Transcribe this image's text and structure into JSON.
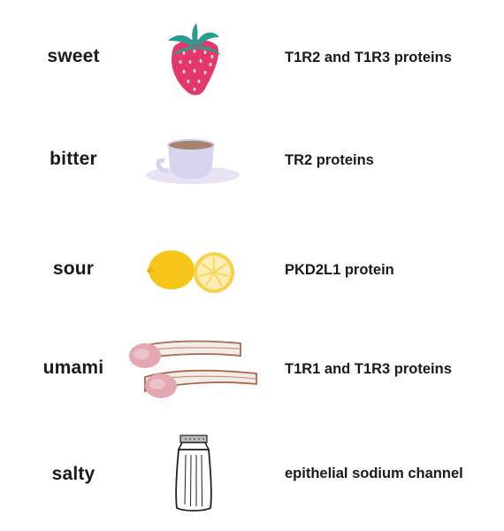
{
  "rows": [
    {
      "taste": "sweet",
      "icon": "strawberry-icon",
      "receptor": "T1R2 and T1R3 proteins"
    },
    {
      "taste": "bitter",
      "icon": "coffee-cup-icon",
      "receptor": "TR2 proteins"
    },
    {
      "taste": "sour",
      "icon": "lemon-icon",
      "receptor": "PKD2L1 protein"
    },
    {
      "taste": "umami",
      "icon": "bacon-icon",
      "receptor": "T1R1 and T1R3 proteins"
    },
    {
      "taste": "salty",
      "icon": "salt-shaker-icon",
      "receptor": "epithelial sodium channel"
    }
  ],
  "colors": {
    "text": "#1a1a1a",
    "strawberry": "#e4386a",
    "leaf": "#2a9d8f",
    "cup": "#d8d3ee",
    "coffee": "#a9826a",
    "lemon": "#f5c518",
    "bacon_meat": "#e3a8b4",
    "bacon_fat": "#f3ebe6",
    "bacon_edge": "#a86a52"
  }
}
